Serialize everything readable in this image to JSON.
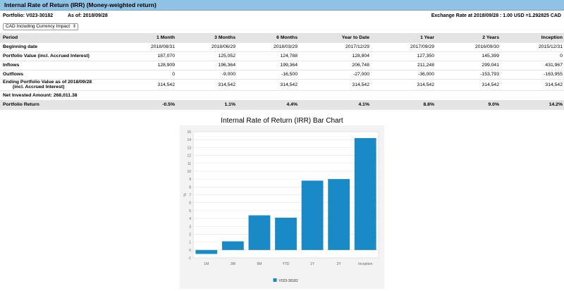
{
  "title": "Internal Rate of Return (IRR) (Money-weighted return)",
  "portfolio_label": "Portfolio: V023-30182",
  "asof_label": "As of: 2018/09/28",
  "exchange_rate_label": "Exchange Rate at 2018/09/28 : 1.00 USD =1.292825 CAD",
  "currency_select": {
    "value": "CAD Including Currency Impact",
    "arrow": "⇕"
  },
  "table": {
    "columns": [
      "Period",
      "1 Month",
      "3 Months",
      "6 Months",
      "Year to Date",
      "1 Year",
      "2 Years",
      "Inception"
    ],
    "rows": [
      {
        "label": "Beginning date",
        "values": [
          "2018/08/31",
          "2018/06/29",
          "2018/03/29",
          "2017/12/29",
          "2017/09/29",
          "2016/09/30",
          "2015/12/31"
        ]
      },
      {
        "label": "Portfolio Value  (incl. Accrued Interest)",
        "values": [
          "187,070",
          "125,052",
          "124,788",
          "128,804",
          "127,350",
          "145,399",
          "0"
        ]
      },
      {
        "label": "Inflows",
        "values": [
          "128,909",
          "196,364",
          "199,364",
          "206,748",
          "211,248",
          "299,041",
          "431,967"
        ]
      },
      {
        "label": "Outflows",
        "values": [
          "0",
          "-9,000",
          "-16,500",
          "-27,000",
          "-36,000",
          "-153,793",
          "-163,955"
        ]
      },
      {
        "label": "Ending Portfolio Value as of  2018/09/28",
        "label2": "(incl. Accrued Interest)",
        "values": [
          "314,542",
          "314,542",
          "314,542",
          "314,542",
          "314,542",
          "314,542",
          "314,542"
        ]
      }
    ],
    "net_invested": "Net Invested Amount: 268,011.38",
    "return_row": {
      "label": "Portfolio Return",
      "values": [
        "-0.5%",
        "1.1%",
        "4.4%",
        "4.1%",
        "8.8%",
        "9.0%",
        "14.2%"
      ]
    }
  },
  "chart_title": "Internal Rate of Return (IRR) Bar Chart",
  "chart_data": {
    "type": "bar",
    "categories": [
      "1M",
      "3M",
      "6M",
      "YTD",
      "1Y",
      "2Y",
      "Inception"
    ],
    "series": [
      {
        "name": "V023-30182",
        "values": [
          -0.5,
          1.1,
          4.4,
          4.1,
          8.8,
          9.0,
          14.2
        ],
        "color": "#1a8ac6"
      }
    ],
    "ylabel": "%",
    "ylim": [
      -1,
      15
    ],
    "yticks": [
      -1,
      0,
      1,
      2,
      3,
      4,
      5,
      6,
      7,
      8,
      9,
      10,
      11,
      12,
      13,
      14,
      15
    ],
    "grid": true,
    "legend": "bottom"
  }
}
